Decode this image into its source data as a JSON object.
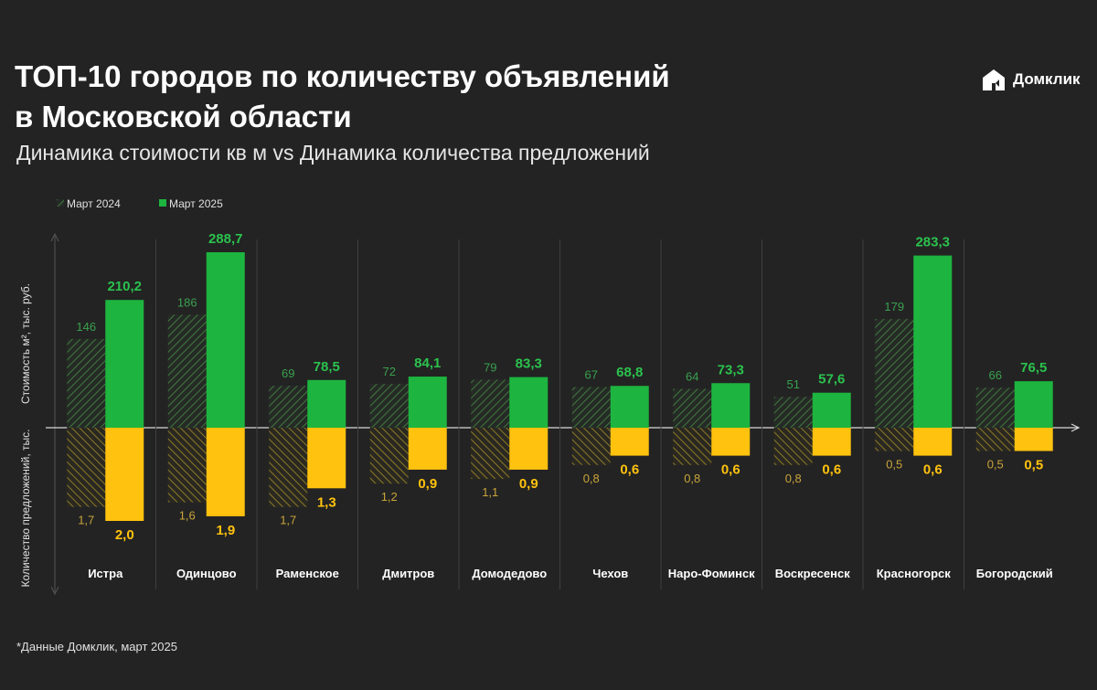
{
  "header": {
    "title_line1": "ТОП-10 городов по количеству объявлений",
    "title_line2": "в Московской области",
    "subtitle": "Динамика стоимости кв м vs Динамика количества предложений",
    "logo_text": "Домклик",
    "logo_icon": "domclick-house-icon"
  },
  "footnote": "*Данные Домклик, март 2025",
  "colors": {
    "background": "#232323",
    "green": "#1DB53F",
    "green_label": "#2BC24E",
    "green_hatch": "#3E7A3E",
    "yellow": "#FFC20E",
    "yellow_hatch": "#8C7A2A",
    "yellow_label": "#FFC20E"
  },
  "chart_data": {
    "type": "bar",
    "categories": [
      "Истра",
      "Одинцово",
      "Раменское",
      "Дмитров",
      "Домодедово",
      "Чехов",
      "Наро-Фоминск",
      "Воскресенск",
      "Красногорск",
      "Богородский"
    ],
    "legend": [
      "Март 2024",
      "Март 2025"
    ],
    "legend_position": "top-left",
    "ylabel_top": "Стоимость м², тыс. руб.",
    "ylabel_bottom": "Количество предложений, тыс.",
    "price": {
      "series": [
        {
          "name": "Март 2024",
          "values": [
            146,
            186,
            69,
            72,
            79,
            67,
            64,
            51,
            179,
            66
          ],
          "labels": [
            "146",
            "186",
            "69",
            "72",
            "79",
            "67",
            "64",
            "51",
            "179",
            "66"
          ]
        },
        {
          "name": "Март 2025",
          "values": [
            210.2,
            288.7,
            78.5,
            84.1,
            83.3,
            68.8,
            73.3,
            57.6,
            283.3,
            76.5
          ],
          "labels": [
            "210,2",
            "288,7",
            "78,5",
            "84,1",
            "83,3",
            "68,8",
            "73,3",
            "57,6",
            "283,3",
            "76,5"
          ]
        }
      ]
    },
    "offers": {
      "series": [
        {
          "name": "Март 2024",
          "values": [
            1.7,
            1.6,
            1.7,
            1.2,
            1.1,
            0.8,
            0.8,
            0.8,
            0.5,
            0.5
          ],
          "labels": [
            "1,7",
            "1,6",
            "1,7",
            "1,2",
            "1,1",
            "0,8",
            "0,8",
            "0,8",
            "0,5",
            "0,5"
          ]
        },
        {
          "name": "Март 2025",
          "values": [
            2.0,
            1.9,
            1.3,
            0.9,
            0.9,
            0.6,
            0.6,
            0.6,
            0.6,
            0.5
          ],
          "labels": [
            "2,0",
            "1,9",
            "1,3",
            "0,9",
            "0,9",
            "0,6",
            "0,6",
            "0,6",
            "0,6",
            "0,5"
          ]
        }
      ]
    },
    "grid": false
  }
}
